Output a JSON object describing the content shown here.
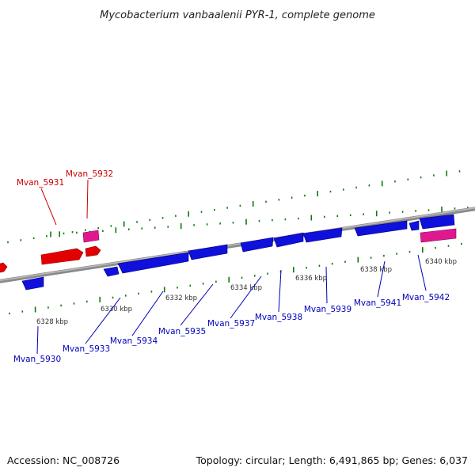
{
  "title": "Mycobacterium vanbaalenii PYR-1, complete genome",
  "footer": {
    "accession": "Accession: NC_008726",
    "summary": "Topology: circular; Length: 6,491,865 bp; Genes: 6,037"
  },
  "colors": {
    "forward_gene": "#e30000",
    "reverse_gene": "#1010dd",
    "rna_gene": "#e01890",
    "forward_label": "#cc0000",
    "reverse_label": "#0000bb",
    "tick": "#0a7a0a",
    "backbone": "#8a8a8a"
  },
  "ticks": {
    "labels": [
      "6328 kbp",
      "6330 kbp",
      "6332 kbp",
      "6334 kbp",
      "6336 kbp",
      "6338 kbp",
      "6340 kbp"
    ]
  },
  "genes": {
    "forward": [
      "Mvan_5931",
      "Mvan_5932"
    ],
    "reverse": [
      "Mvan_5930",
      "Mvan_5933",
      "Mvan_5934",
      "Mvan_5935",
      "Mvan_5937",
      "Mvan_5938",
      "Mvan_5939",
      "Mvan_5941",
      "Mvan_5942"
    ]
  }
}
